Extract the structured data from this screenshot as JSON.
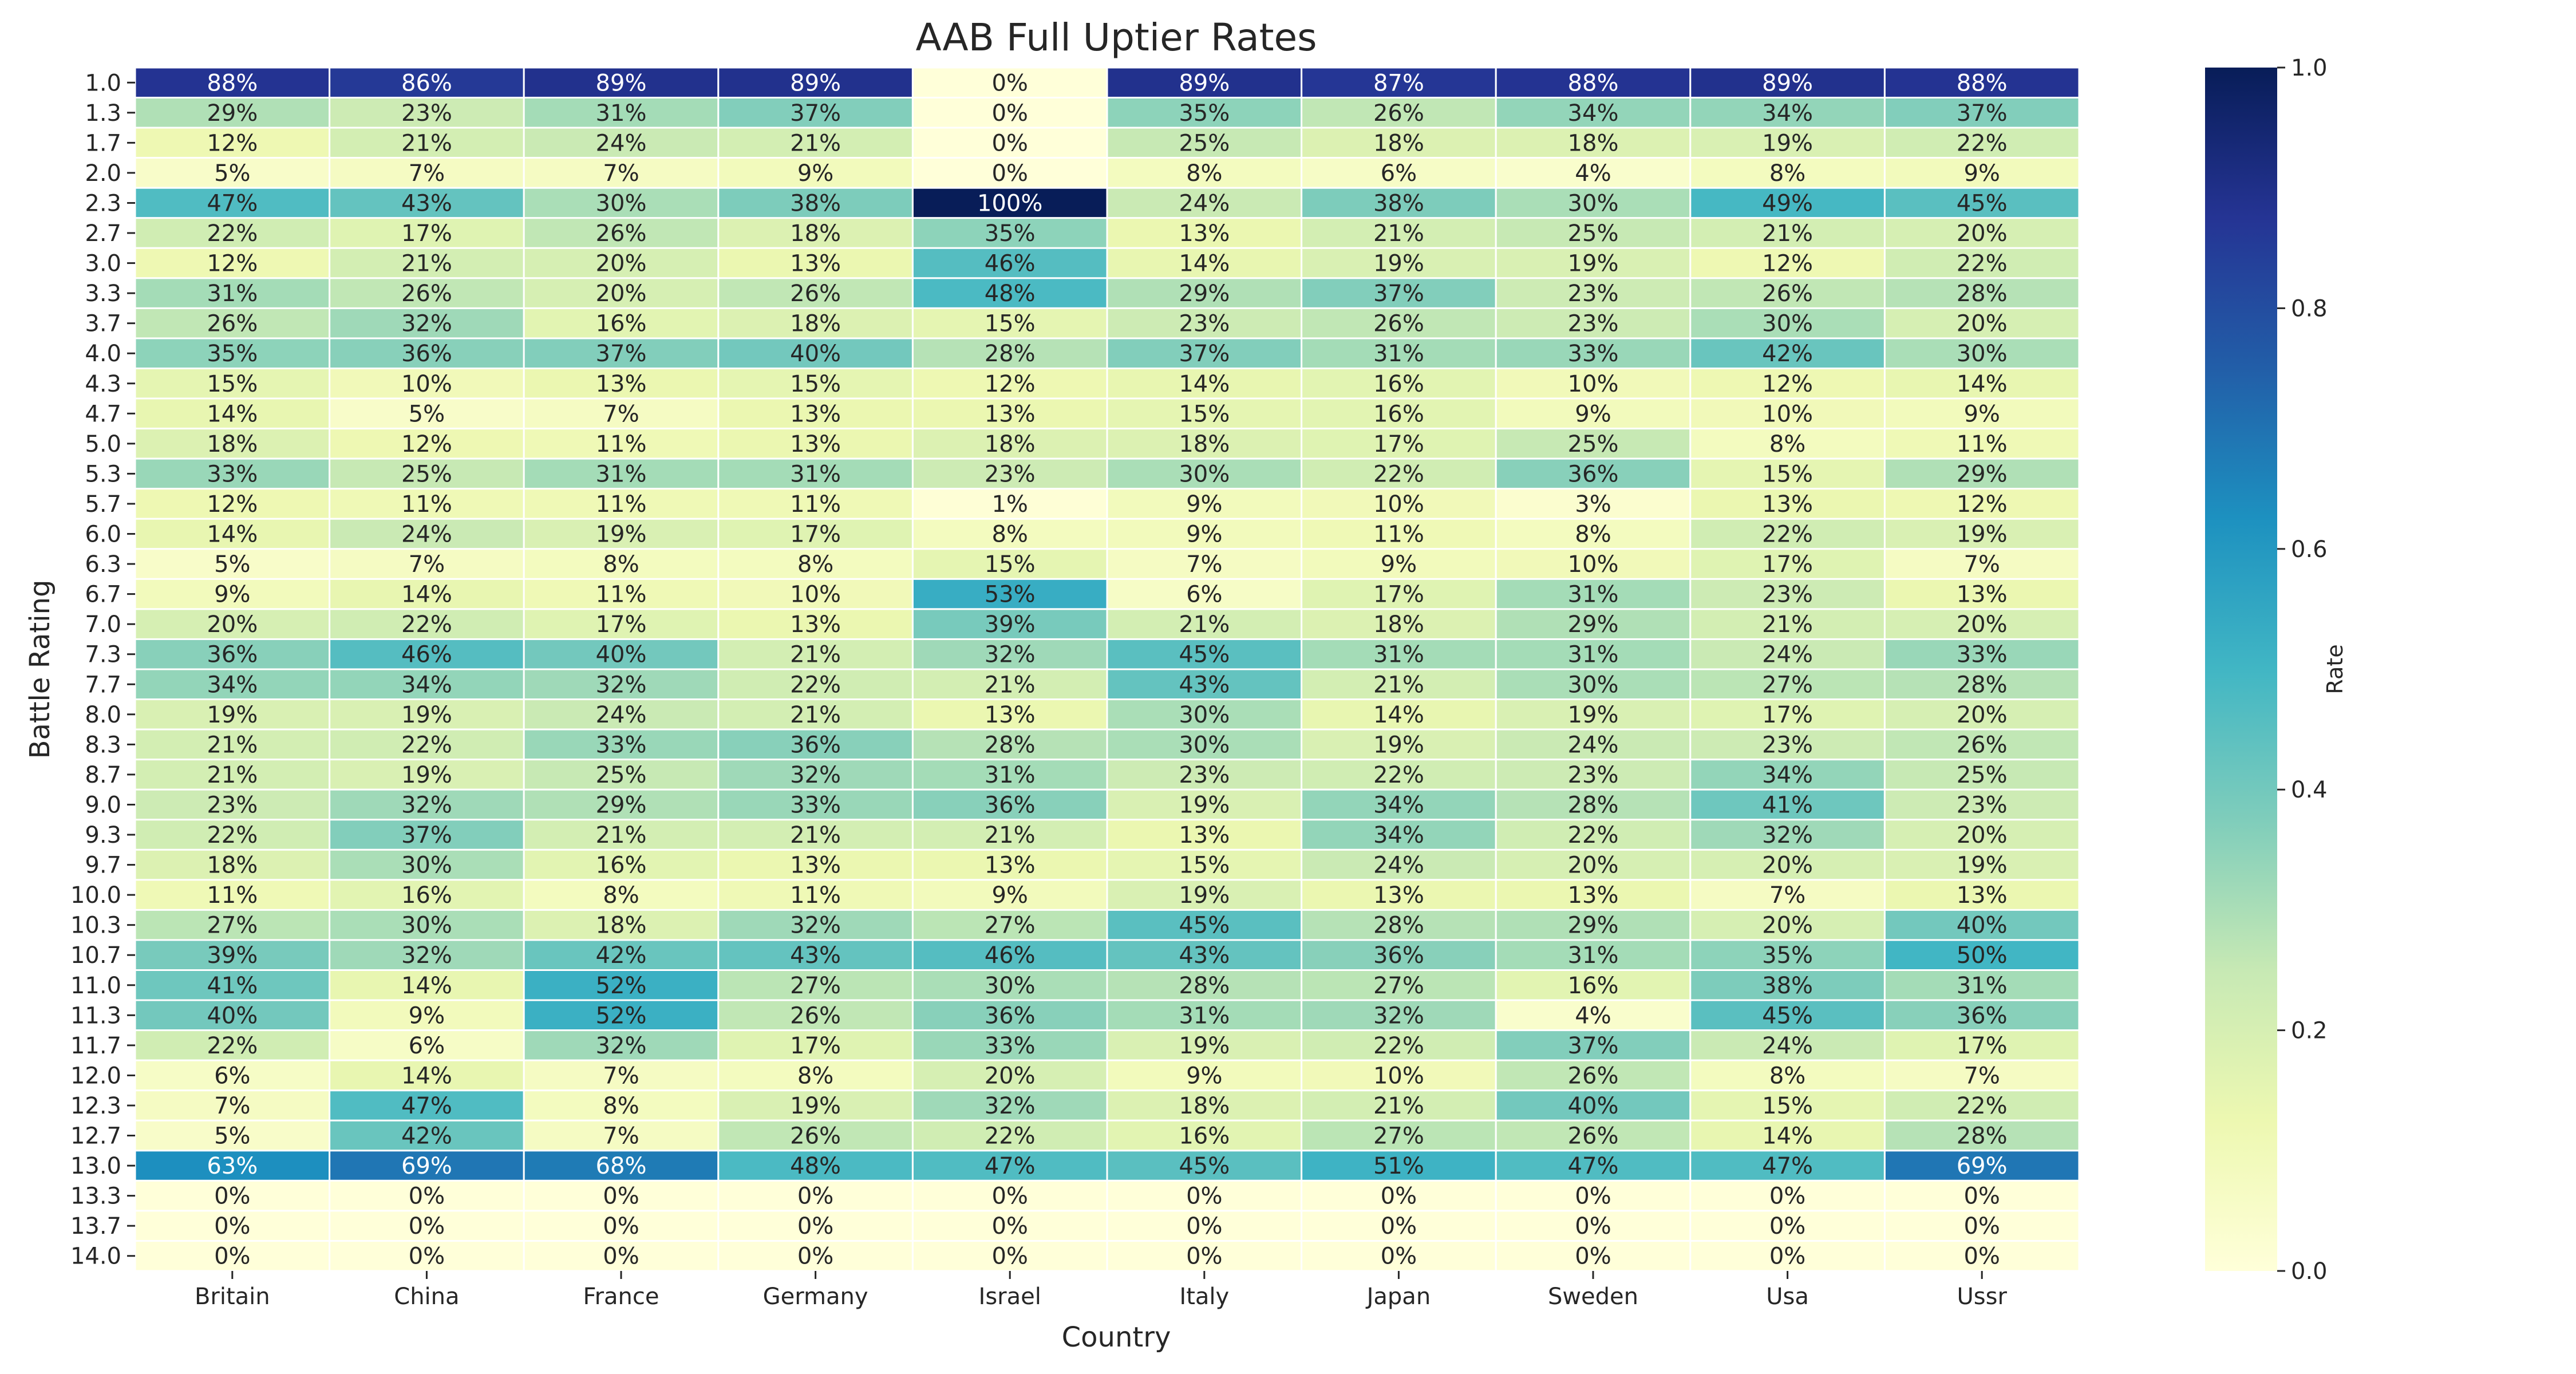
{
  "chart_data": {
    "type": "heatmap",
    "title": "AAB Full Uptier Rates",
    "xlabel": "Country",
    "ylabel": "Battle Rating",
    "colorbar_label": "Rate",
    "colorbar_ticks": [
      "0.0",
      "0.2",
      "0.4",
      "0.6",
      "0.8",
      "1.0"
    ],
    "value_range": [
      0,
      1
    ],
    "colormap": "YlGnBu",
    "colors": {
      "stops": [
        "#ffffd9",
        "#edf8b1",
        "#c7e9b4",
        "#7fcdbb",
        "#41b6c4",
        "#1d91c0",
        "#225ea8",
        "#253494",
        "#081d58"
      ],
      "cell_border": "#ffffff",
      "text_dark": "#262626",
      "text_light": "#ffffff"
    },
    "columns": [
      "Britain",
      "China",
      "France",
      "Germany",
      "Israel",
      "Italy",
      "Japan",
      "Sweden",
      "Usa",
      "Ussr"
    ],
    "rows": [
      "1.0",
      "1.3",
      "1.7",
      "2.0",
      "2.3",
      "2.7",
      "3.0",
      "3.3",
      "3.7",
      "4.0",
      "4.3",
      "4.7",
      "5.0",
      "5.3",
      "5.7",
      "6.0",
      "6.3",
      "6.7",
      "7.0",
      "7.3",
      "7.7",
      "8.0",
      "8.3",
      "8.7",
      "9.0",
      "9.3",
      "9.7",
      "10.0",
      "10.3",
      "10.7",
      "11.0",
      "11.3",
      "11.7",
      "12.0",
      "12.3",
      "12.7",
      "13.0",
      "13.3",
      "13.7",
      "14.0"
    ],
    "values": [
      [
        88,
        86,
        89,
        89,
        0,
        89,
        87,
        88,
        89,
        88
      ],
      [
        29,
        23,
        31,
        37,
        0,
        35,
        26,
        34,
        34,
        37
      ],
      [
        12,
        21,
        24,
        21,
        0,
        25,
        18,
        18,
        19,
        22
      ],
      [
        5,
        7,
        7,
        9,
        0,
        8,
        6,
        4,
        8,
        9
      ],
      [
        47,
        43,
        30,
        38,
        100,
        24,
        38,
        30,
        49,
        45
      ],
      [
        22,
        17,
        26,
        18,
        35,
        13,
        21,
        25,
        21,
        20
      ],
      [
        12,
        21,
        20,
        13,
        46,
        14,
        19,
        19,
        12,
        22
      ],
      [
        31,
        26,
        20,
        26,
        48,
        29,
        37,
        23,
        26,
        28
      ],
      [
        26,
        32,
        16,
        18,
        15,
        23,
        26,
        23,
        30,
        20
      ],
      [
        35,
        36,
        37,
        40,
        28,
        37,
        31,
        33,
        42,
        30
      ],
      [
        15,
        10,
        13,
        15,
        12,
        14,
        16,
        10,
        12,
        14
      ],
      [
        14,
        5,
        7,
        13,
        13,
        15,
        16,
        9,
        10,
        9
      ],
      [
        18,
        12,
        11,
        13,
        18,
        18,
        17,
        25,
        8,
        11
      ],
      [
        33,
        25,
        31,
        31,
        23,
        30,
        22,
        36,
        15,
        29
      ],
      [
        12,
        11,
        11,
        11,
        1,
        9,
        10,
        3,
        13,
        12
      ],
      [
        14,
        24,
        19,
        17,
        8,
        9,
        11,
        8,
        22,
        19
      ],
      [
        5,
        7,
        8,
        8,
        15,
        7,
        9,
        10,
        17,
        7
      ],
      [
        9,
        14,
        11,
        10,
        53,
        6,
        17,
        31,
        23,
        13
      ],
      [
        20,
        22,
        17,
        13,
        39,
        21,
        18,
        29,
        21,
        20
      ],
      [
        36,
        46,
        40,
        21,
        32,
        45,
        31,
        31,
        24,
        33
      ],
      [
        34,
        34,
        32,
        22,
        21,
        43,
        21,
        30,
        27,
        28
      ],
      [
        19,
        19,
        24,
        21,
        13,
        30,
        14,
        19,
        17,
        20
      ],
      [
        21,
        22,
        33,
        36,
        28,
        30,
        19,
        24,
        23,
        26
      ],
      [
        21,
        19,
        25,
        32,
        31,
        23,
        22,
        23,
        34,
        25
      ],
      [
        23,
        32,
        29,
        33,
        36,
        19,
        34,
        28,
        41,
        23
      ],
      [
        22,
        37,
        21,
        21,
        21,
        13,
        34,
        22,
        32,
        20
      ],
      [
        18,
        30,
        16,
        13,
        13,
        15,
        24,
        20,
        20,
        19
      ],
      [
        11,
        16,
        8,
        11,
        9,
        19,
        13,
        13,
        7,
        13
      ],
      [
        27,
        30,
        18,
        32,
        27,
        45,
        28,
        29,
        20,
        40
      ],
      [
        39,
        32,
        42,
        43,
        46,
        43,
        36,
        31,
        35,
        50
      ],
      [
        41,
        14,
        52,
        27,
        30,
        28,
        27,
        16,
        38,
        31
      ],
      [
        40,
        9,
        52,
        26,
        36,
        31,
        32,
        4,
        45,
        36
      ],
      [
        22,
        6,
        32,
        17,
        33,
        19,
        22,
        37,
        24,
        17
      ],
      [
        6,
        14,
        7,
        8,
        20,
        9,
        10,
        26,
        8,
        7
      ],
      [
        7,
        47,
        8,
        19,
        32,
        18,
        21,
        40,
        15,
        22
      ],
      [
        5,
        42,
        7,
        26,
        22,
        16,
        27,
        26,
        14,
        28
      ],
      [
        63,
        69,
        68,
        48,
        47,
        45,
        51,
        47,
        47,
        69
      ],
      [
        0,
        0,
        0,
        0,
        0,
        0,
        0,
        0,
        0,
        0
      ],
      [
        0,
        0,
        0,
        0,
        0,
        0,
        0,
        0,
        0,
        0
      ],
      [
        0,
        0,
        0,
        0,
        0,
        0,
        0,
        0,
        0,
        0
      ]
    ],
    "value_suffix": "%"
  }
}
